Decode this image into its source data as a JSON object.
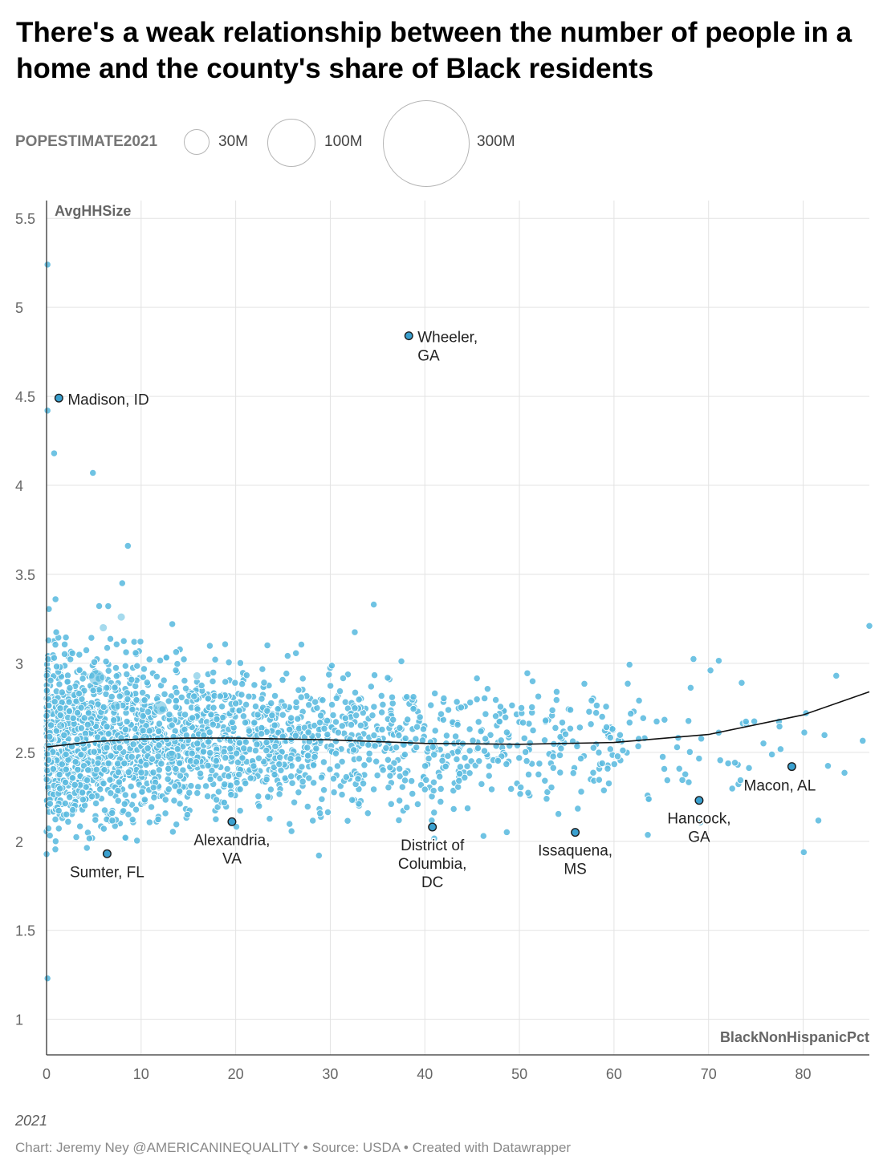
{
  "title": "There's a weak relationship between the number of people in a home and the county's share of Black residents",
  "legend": {
    "label": "POPESTIMATE2021",
    "sizes": [
      {
        "label": "30M",
        "value": 30000000
      },
      {
        "label": "100M",
        "value": 100000000
      },
      {
        "label": "300M",
        "value": 300000000
      }
    ]
  },
  "notes": "2021",
  "credit": "Chart: Jeremy Ney @AMERICANINEQUALITY • Source: USDA • Created with Datawrapper",
  "colors": {
    "point_fill": "#5bbbdf",
    "point_stroke": "#ffffff",
    "highlight_fill": "#3aa0cf",
    "highlight_stroke": "#1c1c1c",
    "trend": "#111111",
    "grid": "#e3e3e3",
    "axis": "#333333"
  },
  "chart_data": {
    "type": "scatter",
    "xlabel": "BlackNonHispanicPct",
    "ylabel": "AvgHHSize",
    "size_variable": "POPESTIMATE2021",
    "xlim": [
      0,
      87
    ],
    "ylim": [
      0.8,
      5.6
    ],
    "xticks": [
      0,
      10,
      20,
      30,
      40,
      50,
      60,
      70,
      80
    ],
    "yticks": [
      1,
      1.5,
      2,
      2.5,
      3,
      3.5,
      4,
      4.5,
      5,
      5.5
    ],
    "trendline": {
      "type": "polynomial",
      "x": [
        0,
        5,
        10,
        15,
        20,
        30,
        40,
        50,
        60,
        70,
        80,
        87
      ],
      "y": [
        2.53,
        2.56,
        2.575,
        2.58,
        2.58,
        2.57,
        2.55,
        2.545,
        2.555,
        2.6,
        2.71,
        2.84
      ]
    },
    "highlighted": [
      {
        "label": "Wheeler,\nGA",
        "x": 38.3,
        "y": 4.84,
        "label_pos": "right"
      },
      {
        "label": "Madison, ID",
        "x": 1.3,
        "y": 4.49,
        "label_pos": "right"
      },
      {
        "label": "Macon, AL",
        "x": 78.8,
        "y": 2.42,
        "label_pos": "below-left"
      },
      {
        "label": "Hancock,\nGA",
        "x": 69.0,
        "y": 2.23,
        "label_pos": "below"
      },
      {
        "label": "Alexandria,\nVA",
        "x": 19.6,
        "y": 2.11,
        "label_pos": "below"
      },
      {
        "label": "District of\nColumbia,\nDC",
        "x": 40.8,
        "y": 2.08,
        "label_pos": "below"
      },
      {
        "label": "Issaquena,\nMS",
        "x": 55.9,
        "y": 2.05,
        "label_pos": "below"
      },
      {
        "label": "Sumter, FL",
        "x": 6.4,
        "y": 1.93,
        "label_pos": "below"
      }
    ],
    "notable_points": [
      {
        "x": 0.1,
        "y": 5.24
      },
      {
        "x": 0.1,
        "y": 4.42
      },
      {
        "x": 0.8,
        "y": 4.18
      },
      {
        "x": 4.9,
        "y": 4.07
      },
      {
        "x": 0.1,
        "y": 1.23
      },
      {
        "x": 34.6,
        "y": 3.33
      },
      {
        "x": 87.0,
        "y": 3.21
      },
      {
        "x": 83.5,
        "y": 2.93
      },
      {
        "x": 8.6,
        "y": 3.66
      },
      {
        "x": 70.2,
        "y": 2.96
      },
      {
        "x": 28.8,
        "y": 1.92
      },
      {
        "x": 46.2,
        "y": 2.03
      },
      {
        "x": 80.3,
        "y": 2.72
      },
      {
        "x": 75.8,
        "y": 2.55
      },
      {
        "x": 73.5,
        "y": 2.89
      }
    ],
    "large_points": [
      {
        "x": 5.3,
        "y": 2.92,
        "pop": 10000000
      },
      {
        "x": 12.0,
        "y": 2.75,
        "pop": 8000000
      },
      {
        "x": 13.2,
        "y": 2.48,
        "pop": 5000000
      },
      {
        "x": 7.3,
        "y": 2.76,
        "pop": 4000000
      },
      {
        "x": 10.4,
        "y": 2.58,
        "pop": 3500000
      },
      {
        "x": 15.9,
        "y": 2.93,
        "pop": 2500000
      },
      {
        "x": 1.5,
        "y": 2.65,
        "pop": 2000000
      },
      {
        "x": 6.0,
        "y": 3.2,
        "pop": 1500000
      },
      {
        "x": 7.9,
        "y": 3.26,
        "pop": 1200000
      }
    ],
    "bulk_distribution": [
      {
        "x_range": [
          0,
          10
        ],
        "y_mean": 2.55,
        "y_sd": 0.24,
        "count": 950
      },
      {
        "x_range": [
          10,
          20
        ],
        "y_mean": 2.56,
        "y_sd": 0.2,
        "count": 520
      },
      {
        "x_range": [
          20,
          30
        ],
        "y_mean": 2.56,
        "y_sd": 0.19,
        "count": 330
      },
      {
        "x_range": [
          30,
          40
        ],
        "y_mean": 2.55,
        "y_sd": 0.18,
        "count": 210
      },
      {
        "x_range": [
          40,
          50
        ],
        "y_mean": 2.55,
        "y_sd": 0.18,
        "count": 140
      },
      {
        "x_range": [
          50,
          60
        ],
        "y_mean": 2.55,
        "y_sd": 0.17,
        "count": 100
      },
      {
        "x_range": [
          60,
          70
        ],
        "y_mean": 2.55,
        "y_sd": 0.2,
        "count": 40
      },
      {
        "x_range": [
          70,
          87
        ],
        "y_mean": 2.6,
        "y_sd": 0.2,
        "count": 25
      }
    ]
  }
}
